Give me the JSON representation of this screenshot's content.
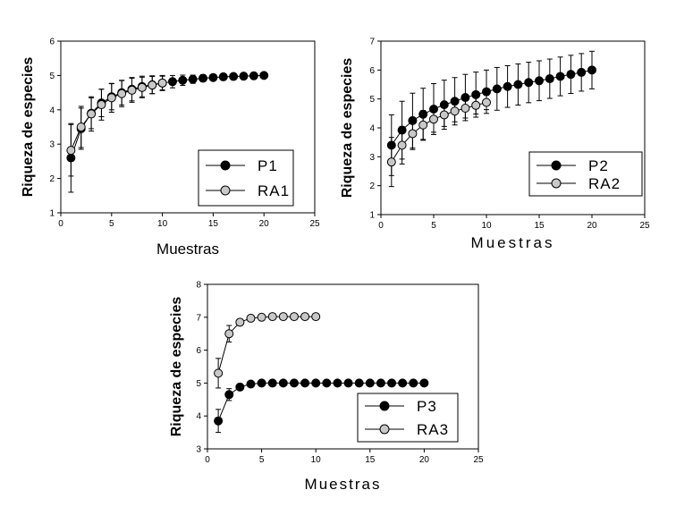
{
  "colors": {
    "filled": "#000000",
    "open": "#c8c8c8",
    "axis": "#000000"
  },
  "chart_data": [
    {
      "type": "line",
      "xlabel": "Muestras",
      "ylabel": "Riqueza de especies",
      "xlim": [
        0,
        25
      ],
      "ylim": [
        1,
        6
      ],
      "xticks": [
        "0",
        "5",
        "10",
        "15",
        "20",
        "25"
      ],
      "yticks": [
        "1",
        "2",
        "3",
        "4",
        "5",
        "6"
      ],
      "legend_position": "bottom-right",
      "series": [
        {
          "name": "P1",
          "marker": "filled",
          "x": [
            1,
            2,
            3,
            4,
            5,
            6,
            7,
            8,
            9,
            10,
            11,
            12,
            13,
            14,
            15,
            16,
            17,
            18,
            19,
            20
          ],
          "y": [
            2.6,
            3.45,
            3.9,
            4.2,
            4.38,
            4.5,
            4.6,
            4.68,
            4.73,
            4.78,
            4.82,
            4.86,
            4.89,
            4.92,
            4.94,
            4.96,
            4.97,
            4.98,
            4.99,
            5.0
          ],
          "err": [
            1.0,
            0.6,
            0.45,
            0.4,
            0.38,
            0.36,
            0.34,
            0.3,
            0.26,
            0.22,
            0.18,
            0.15,
            0.12,
            0.1,
            0.08,
            0.06,
            0.05,
            0.04,
            0.03,
            0.02
          ]
        },
        {
          "name": "RA1",
          "marker": "open",
          "x": [
            1,
            2,
            3,
            4,
            5,
            6,
            7,
            8,
            9,
            10
          ],
          "y": [
            2.82,
            3.5,
            3.88,
            4.15,
            4.35,
            4.47,
            4.57,
            4.65,
            4.72,
            4.78
          ],
          "err": [
            0.75,
            0.6,
            0.5,
            0.45,
            0.42,
            0.38,
            0.35,
            0.3,
            0.25,
            0.2
          ]
        }
      ]
    },
    {
      "type": "line",
      "xlabel": "Muestras",
      "ylabel": "Riqueza de especies",
      "xlim": [
        0,
        25
      ],
      "ylim": [
        1,
        7
      ],
      "xticks": [
        "0",
        "5",
        "10",
        "15",
        "20",
        "25"
      ],
      "yticks": [
        "1",
        "2",
        "3",
        "4",
        "5",
        "6",
        "7"
      ],
      "legend_position": "bottom-right",
      "series": [
        {
          "name": "P2",
          "marker": "filled",
          "x": [
            1,
            2,
            3,
            4,
            5,
            6,
            7,
            8,
            9,
            10,
            11,
            12,
            13,
            14,
            15,
            16,
            17,
            18,
            19,
            20
          ],
          "y": [
            3.4,
            3.92,
            4.25,
            4.47,
            4.65,
            4.8,
            4.92,
            5.05,
            5.15,
            5.25,
            5.35,
            5.43,
            5.5,
            5.57,
            5.63,
            5.7,
            5.78,
            5.85,
            5.92,
            6.0
          ],
          "err": [
            1.05,
            1.0,
            0.95,
            0.9,
            0.88,
            0.85,
            0.82,
            0.8,
            0.78,
            0.75,
            0.74,
            0.72,
            0.71,
            0.7,
            0.69,
            0.68,
            0.67,
            0.66,
            0.65,
            0.65
          ]
        },
        {
          "name": "RA2",
          "marker": "open",
          "x": [
            1,
            2,
            3,
            4,
            5,
            6,
            7,
            8,
            9,
            10
          ],
          "y": [
            2.82,
            3.4,
            3.8,
            4.1,
            4.3,
            4.45,
            4.58,
            4.68,
            4.78,
            4.88
          ],
          "err": [
            0.85,
            0.65,
            0.55,
            0.5,
            0.45,
            0.4,
            0.37,
            0.34,
            0.3,
            0.25
          ]
        }
      ]
    },
    {
      "type": "line",
      "xlabel": "Muestras",
      "ylabel": "Riqueza de especies",
      "xlim": [
        0,
        25
      ],
      "ylim": [
        3,
        8
      ],
      "xticks": [
        "0",
        "5",
        "10",
        "15",
        "20",
        "25"
      ],
      "yticks": [
        "3",
        "4",
        "5",
        "6",
        "7",
        "8"
      ],
      "legend_position": "bottom-right",
      "series": [
        {
          "name": "P3",
          "marker": "filled",
          "x": [
            1,
            2,
            3,
            4,
            5,
            6,
            7,
            8,
            9,
            10,
            11,
            12,
            13,
            14,
            15,
            16,
            17,
            18,
            19,
            20
          ],
          "y": [
            3.85,
            4.65,
            4.88,
            4.97,
            5.0,
            5.0,
            5.0,
            5.0,
            5.0,
            5.0,
            5.0,
            5.0,
            5.0,
            5.0,
            5.0,
            5.0,
            5.0,
            5.0,
            5.0,
            5.0
          ],
          "err": [
            0.35,
            0.18,
            0.1,
            0.05,
            0.02,
            0,
            0,
            0,
            0,
            0,
            0,
            0,
            0,
            0,
            0,
            0,
            0,
            0,
            0,
            0
          ]
        },
        {
          "name": "RA3",
          "marker": "open",
          "x": [
            1,
            2,
            3,
            4,
            5,
            6,
            7,
            8,
            9,
            10
          ],
          "y": [
            5.3,
            6.5,
            6.85,
            6.97,
            7.0,
            7.02,
            7.02,
            7.02,
            7.02,
            7.02
          ],
          "err": [
            0.45,
            0.25,
            0.1,
            0.05,
            0.02,
            0,
            0,
            0,
            0,
            0
          ]
        }
      ]
    }
  ]
}
